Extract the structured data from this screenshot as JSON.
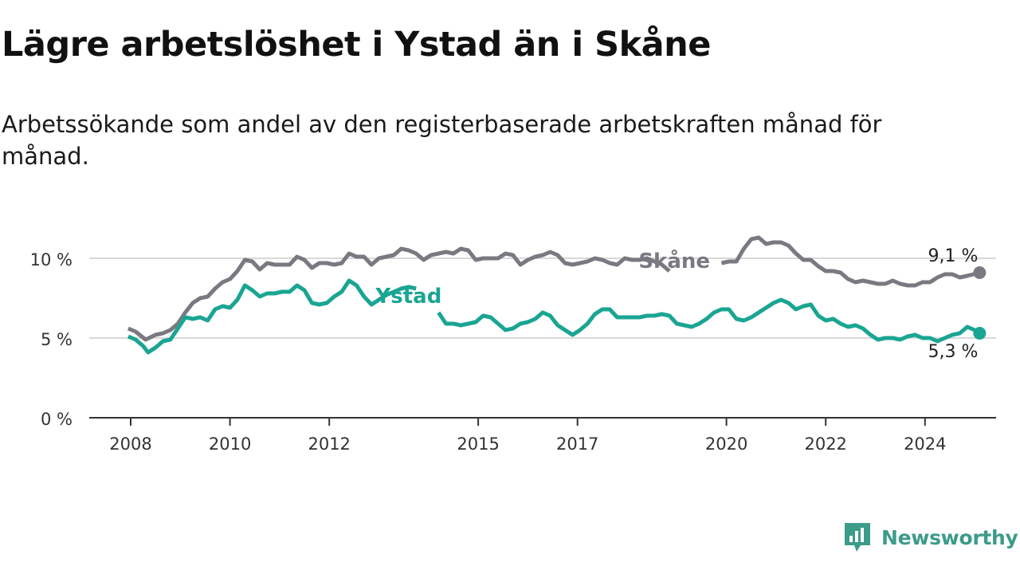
{
  "title": "Lägre arbetslöshet i Ystad än i Skåne",
  "subtitle": "Arbetssökande som andel av den registerbaserade arbetskraften månad för månad.",
  "brand": {
    "name": "Newsworthy",
    "color": "#3d9b8a",
    "icon": "newsworthy-logo-icon"
  },
  "chart_data": {
    "type": "line",
    "title": "Lägre arbetslöshet i Ystad än i Skåne",
    "xlabel": "",
    "ylabel": "",
    "xlim": [
      2008,
      2025.75
    ],
    "ylim": [
      0,
      12
    ],
    "x_ticks": [
      {
        "value": 2008,
        "label": "2008"
      },
      {
        "value": 2010,
        "label": "2010"
      },
      {
        "value": 2012,
        "label": "2012"
      },
      {
        "value": 2015,
        "label": "2015"
      },
      {
        "value": 2017,
        "label": "2017"
      },
      {
        "value": 2020,
        "label": "2020"
      },
      {
        "value": 2022,
        "label": "2022"
      },
      {
        "value": 2024,
        "label": "2024"
      }
    ],
    "y_ticks": [
      {
        "value": 0,
        "label": "0 %"
      },
      {
        "value": 5,
        "label": "5 %"
      },
      {
        "value": 10,
        "label": "10 %"
      }
    ],
    "grid": true,
    "series": [
      {
        "name": "Skåne",
        "color": "#7a7880",
        "label_at": [
          2018.95,
          9.4
        ],
        "end_label": "9,1 %",
        "points": [
          [
            2007.95,
            5.6
          ],
          [
            2008.1,
            5.4
          ],
          [
            2008.3,
            4.9
          ],
          [
            2008.5,
            5.2
          ],
          [
            2008.65,
            5.3
          ],
          [
            2008.8,
            5.5
          ],
          [
            2008.95,
            5.9
          ],
          [
            2009.1,
            6.6
          ],
          [
            2009.25,
            7.2
          ],
          [
            2009.4,
            7.5
          ],
          [
            2009.55,
            7.6
          ],
          [
            2009.7,
            8.1
          ],
          [
            2009.85,
            8.5
          ],
          [
            2010.0,
            8.7
          ],
          [
            2010.15,
            9.2
          ],
          [
            2010.3,
            9.9
          ],
          [
            2010.45,
            9.8
          ],
          [
            2010.6,
            9.3
          ],
          [
            2010.75,
            9.7
          ],
          [
            2010.9,
            9.6
          ],
          [
            2011.05,
            9.6
          ],
          [
            2011.2,
            9.6
          ],
          [
            2011.35,
            10.1
          ],
          [
            2011.5,
            9.9
          ],
          [
            2011.65,
            9.4
          ],
          [
            2011.8,
            9.7
          ],
          [
            2011.95,
            9.7
          ],
          [
            2012.1,
            9.6
          ],
          [
            2012.25,
            9.7
          ],
          [
            2012.4,
            10.3
          ],
          [
            2012.55,
            10.1
          ],
          [
            2012.7,
            10.1
          ],
          [
            2012.85,
            9.6
          ],
          [
            2013.0,
            10.0
          ],
          [
            2013.15,
            10.1
          ],
          [
            2013.3,
            10.2
          ],
          [
            2013.45,
            10.6
          ],
          [
            2013.6,
            10.5
          ],
          [
            2013.75,
            10.3
          ],
          [
            2013.9,
            9.9
          ],
          [
            2014.05,
            10.2
          ],
          [
            2014.2,
            10.3
          ],
          [
            2014.35,
            10.4
          ],
          [
            2014.5,
            10.3
          ],
          [
            2014.65,
            10.6
          ],
          [
            2014.8,
            10.5
          ],
          [
            2014.95,
            9.9
          ],
          [
            2015.1,
            10.0
          ],
          [
            2015.25,
            10.0
          ],
          [
            2015.4,
            10.0
          ],
          [
            2015.55,
            10.3
          ],
          [
            2015.7,
            10.2
          ],
          [
            2015.85,
            9.6
          ],
          [
            2016.0,
            9.9
          ],
          [
            2016.15,
            10.1
          ],
          [
            2016.3,
            10.2
          ],
          [
            2016.45,
            10.4
          ],
          [
            2016.6,
            10.2
          ],
          [
            2016.75,
            9.7
          ],
          [
            2016.9,
            9.6
          ],
          [
            2017.05,
            9.7
          ],
          [
            2017.2,
            9.8
          ],
          [
            2017.35,
            10.0
          ],
          [
            2017.5,
            9.9
          ],
          [
            2017.65,
            9.7
          ],
          [
            2017.8,
            9.6
          ],
          [
            2017.95,
            10.0
          ],
          [
            2018.1,
            9.9
          ],
          [
            2018.25,
            9.9
          ],
          [
            2018.4,
            10.0
          ],
          [
            2018.55,
            9.8
          ],
          [
            2018.7,
            9.6
          ],
          [
            2018.85,
            9.2
          ]
        ],
        "points_2": [
          [
            2019.9,
            9.7
          ],
          [
            2020.05,
            9.8
          ],
          [
            2020.2,
            9.8
          ],
          [
            2020.35,
            10.6
          ],
          [
            2020.5,
            11.2
          ],
          [
            2020.65,
            11.3
          ],
          [
            2020.8,
            10.9
          ],
          [
            2020.95,
            11.0
          ],
          [
            2021.1,
            11.0
          ],
          [
            2021.25,
            10.8
          ],
          [
            2021.4,
            10.3
          ],
          [
            2021.55,
            9.9
          ],
          [
            2021.7,
            9.9
          ],
          [
            2021.85,
            9.5
          ],
          [
            2022.0,
            9.2
          ],
          [
            2022.15,
            9.2
          ],
          [
            2022.3,
            9.1
          ],
          [
            2022.45,
            8.7
          ],
          [
            2022.6,
            8.5
          ],
          [
            2022.75,
            8.6
          ],
          [
            2022.9,
            8.5
          ],
          [
            2023.05,
            8.4
          ],
          [
            2023.2,
            8.4
          ],
          [
            2023.35,
            8.6
          ],
          [
            2023.5,
            8.4
          ],
          [
            2023.65,
            8.3
          ],
          [
            2023.8,
            8.3
          ],
          [
            2023.95,
            8.5
          ],
          [
            2024.1,
            8.5
          ],
          [
            2024.25,
            8.8
          ],
          [
            2024.4,
            9.0
          ],
          [
            2024.55,
            9.0
          ],
          [
            2024.7,
            8.8
          ],
          [
            2024.85,
            8.9
          ],
          [
            2025.1,
            9.1
          ]
        ]
      },
      {
        "name": "Ystad",
        "color": "#1aa593",
        "label_at": [
          2013.6,
          7.2
        ],
        "end_label": "5,3 %",
        "points": [
          [
            2007.95,
            5.1
          ],
          [
            2008.1,
            4.9
          ],
          [
            2008.25,
            4.5
          ],
          [
            2008.35,
            4.1
          ],
          [
            2008.5,
            4.4
          ],
          [
            2008.65,
            4.8
          ],
          [
            2008.8,
            4.9
          ],
          [
            2008.95,
            5.6
          ],
          [
            2009.1,
            6.3
          ],
          [
            2009.25,
            6.2
          ],
          [
            2009.4,
            6.3
          ],
          [
            2009.55,
            6.1
          ],
          [
            2009.7,
            6.8
          ],
          [
            2009.85,
            7.0
          ],
          [
            2010.0,
            6.9
          ],
          [
            2010.15,
            7.4
          ],
          [
            2010.3,
            8.3
          ],
          [
            2010.45,
            8.0
          ],
          [
            2010.6,
            7.6
          ],
          [
            2010.75,
            7.8
          ],
          [
            2010.9,
            7.8
          ],
          [
            2011.05,
            7.9
          ],
          [
            2011.2,
            7.9
          ],
          [
            2011.35,
            8.3
          ],
          [
            2011.5,
            8.0
          ],
          [
            2011.65,
            7.2
          ],
          [
            2011.8,
            7.1
          ],
          [
            2011.95,
            7.2
          ],
          [
            2012.1,
            7.6
          ],
          [
            2012.25,
            7.9
          ],
          [
            2012.4,
            8.6
          ],
          [
            2012.55,
            8.3
          ],
          [
            2012.7,
            7.6
          ],
          [
            2012.85,
            7.1
          ],
          [
            2013.0,
            7.4
          ],
          [
            2013.15,
            7.7
          ],
          [
            2013.3,
            7.9
          ],
          [
            2013.45,
            8.1
          ],
          [
            2013.6,
            8.2
          ],
          [
            2013.75,
            8.1
          ]
        ],
        "points_2": [
          [
            2014.2,
            6.6
          ],
          [
            2014.35,
            5.9
          ],
          [
            2014.5,
            5.9
          ],
          [
            2014.65,
            5.8
          ],
          [
            2014.8,
            5.9
          ],
          [
            2014.95,
            6.0
          ],
          [
            2015.1,
            6.4
          ],
          [
            2015.25,
            6.3
          ],
          [
            2015.4,
            5.9
          ],
          [
            2015.55,
            5.5
          ],
          [
            2015.7,
            5.6
          ],
          [
            2015.85,
            5.9
          ],
          [
            2016.0,
            6.0
          ],
          [
            2016.15,
            6.2
          ],
          [
            2016.3,
            6.6
          ],
          [
            2016.45,
            6.4
          ],
          [
            2016.6,
            5.8
          ],
          [
            2016.75,
            5.5
          ],
          [
            2016.9,
            5.2
          ],
          [
            2017.05,
            5.5
          ],
          [
            2017.2,
            5.9
          ],
          [
            2017.35,
            6.5
          ],
          [
            2017.5,
            6.8
          ],
          [
            2017.65,
            6.8
          ],
          [
            2017.8,
            6.3
          ],
          [
            2017.95,
            6.3
          ],
          [
            2018.1,
            6.3
          ],
          [
            2018.25,
            6.3
          ],
          [
            2018.4,
            6.4
          ],
          [
            2018.55,
            6.4
          ],
          [
            2018.7,
            6.5
          ],
          [
            2018.85,
            6.4
          ],
          [
            2019.0,
            5.9
          ],
          [
            2019.15,
            5.8
          ],
          [
            2019.3,
            5.7
          ],
          [
            2019.45,
            5.9
          ],
          [
            2019.6,
            6.2
          ],
          [
            2019.75,
            6.6
          ],
          [
            2019.9,
            6.8
          ],
          [
            2020.05,
            6.8
          ],
          [
            2020.2,
            6.2
          ],
          [
            2020.35,
            6.1
          ],
          [
            2020.5,
            6.3
          ],
          [
            2020.65,
            6.6
          ],
          [
            2020.8,
            6.9
          ],
          [
            2020.95,
            7.2
          ],
          [
            2021.1,
            7.4
          ],
          [
            2021.25,
            7.2
          ],
          [
            2021.4,
            6.8
          ],
          [
            2021.55,
            7.0
          ],
          [
            2021.7,
            7.1
          ],
          [
            2021.85,
            6.4
          ],
          [
            2022.0,
            6.1
          ],
          [
            2022.15,
            6.2
          ],
          [
            2022.3,
            5.9
          ],
          [
            2022.45,
            5.7
          ],
          [
            2022.6,
            5.8
          ],
          [
            2022.75,
            5.6
          ],
          [
            2022.9,
            5.2
          ],
          [
            2023.05,
            4.9
          ],
          [
            2023.2,
            5.0
          ],
          [
            2023.35,
            5.0
          ],
          [
            2023.5,
            4.9
          ],
          [
            2023.65,
            5.1
          ],
          [
            2023.8,
            5.2
          ],
          [
            2023.95,
            5.0
          ],
          [
            2024.1,
            5.0
          ],
          [
            2024.25,
            4.8
          ],
          [
            2024.4,
            5.0
          ],
          [
            2024.55,
            5.2
          ],
          [
            2024.7,
            5.3
          ],
          [
            2024.85,
            5.7
          ],
          [
            2025.0,
            5.5
          ],
          [
            2025.1,
            5.3
          ]
        ]
      }
    ]
  }
}
